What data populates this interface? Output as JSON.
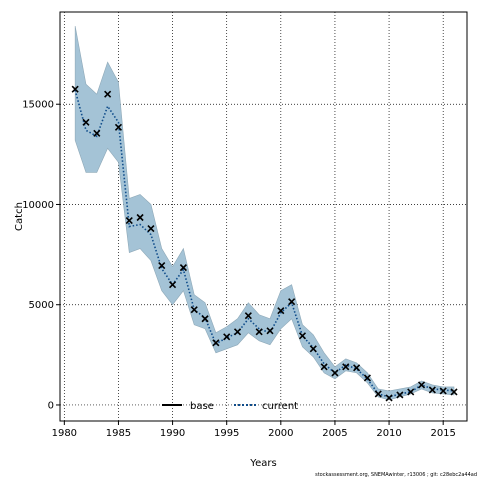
{
  "chart_data": {
    "type": "line",
    "xlabel": "Years",
    "ylabel": "Catch",
    "xlim": [
      1979.6,
      2017.2
    ],
    "ylim": [
      -800,
      19600
    ],
    "xticks": [
      "1980",
      "1985",
      "1990",
      "1995",
      "2000",
      "2005",
      "2010",
      "2015"
    ],
    "yticks": [
      "0",
      "5000",
      "10000",
      "15000"
    ],
    "grid": true,
    "legend_position": "bottom-center",
    "x": [
      1981,
      1982,
      1983,
      1984,
      1985,
      1986,
      1987,
      1988,
      1989,
      1990,
      1991,
      1992,
      1993,
      1994,
      1995,
      1996,
      1997,
      1998,
      1999,
      2000,
      2001,
      2002,
      2003,
      2004,
      2005,
      2006,
      2007,
      2008,
      2009,
      2010,
      2011,
      2012,
      2013,
      2014,
      2015,
      2016
    ],
    "observed": [
      15750,
      14100,
      13550,
      15500,
      13850,
      9200,
      9350,
      8800,
      6950,
      6000,
      6850,
      4750,
      4300,
      3100,
      3400,
      3650,
      4450,
      3650,
      3700,
      4700,
      5150,
      3450,
      2800,
      1900,
      1600,
      1900,
      1850,
      1350,
      550,
      350,
      500,
      650,
      1000,
      750,
      700,
      650
    ],
    "ci_upper": [
      18900,
      16000,
      15500,
      17100,
      16100,
      10300,
      10500,
      10000,
      7800,
      6900,
      7800,
      5500,
      5100,
      3600,
      3900,
      4300,
      5100,
      4500,
      4300,
      5700,
      6000,
      4000,
      3500,
      2600,
      1900,
      2300,
      2100,
      1600,
      800,
      700,
      800,
      900,
      1200,
      1000,
      900,
      900
    ],
    "ci_lower": [
      13200,
      11600,
      11600,
      12800,
      12100,
      7600,
      7800,
      7200,
      5700,
      5000,
      5700,
      4000,
      3800,
      2600,
      2800,
      3000,
      3600,
      3200,
      3000,
      3800,
      4300,
      2900,
      2400,
      1600,
      1300,
      1700,
      1600,
      1100,
      400,
      250,
      400,
      550,
      800,
      600,
      550,
      500
    ],
    "series": [
      {
        "name": "base",
        "color": "#000000",
        "style": "solid"
      },
      {
        "name": "current",
        "color": "#0f4c8a",
        "style": "dotted",
        "values": [
          15700,
          13700,
          13400,
          14900,
          14100,
          8900,
          9000,
          8500,
          6800,
          6000,
          6750,
          4750,
          4350,
          3050,
          3350,
          3600,
          4300,
          3800,
          3600,
          4600,
          5100,
          3450,
          2850,
          2050,
          1600,
          2000,
          1800,
          1300,
          550,
          400,
          550,
          650,
          1000,
          800,
          750,
          700
        ]
      }
    ],
    "band_color": "#a4c3d6",
    "footer": "stockassessment.org, SNEMAwinter, r13006 ; git: c28ebc2a44ad"
  }
}
